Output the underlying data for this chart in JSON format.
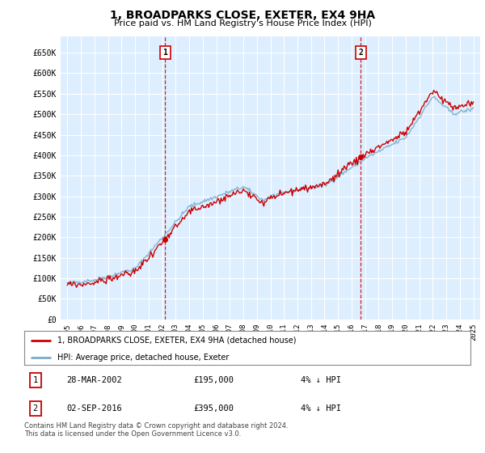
{
  "title": "1, BROADPARKS CLOSE, EXETER, EX4 9HA",
  "subtitle": "Price paid vs. HM Land Registry's House Price Index (HPI)",
  "ylabel_ticks": [
    "£0",
    "£50K",
    "£100K",
    "£150K",
    "£200K",
    "£250K",
    "£300K",
    "£350K",
    "£400K",
    "£450K",
    "£500K",
    "£550K",
    "£600K",
    "£650K"
  ],
  "ytick_values": [
    0,
    50000,
    100000,
    150000,
    200000,
    250000,
    300000,
    350000,
    400000,
    450000,
    500000,
    550000,
    600000,
    650000
  ],
  "x_start_year": 1995,
  "x_end_year": 2025,
  "sale1_year": 2002.23,
  "sale1_price": 195000,
  "sale2_year": 2016.67,
  "sale2_price": 395000,
  "legend_label_red": "1, BROADPARKS CLOSE, EXETER, EX4 9HA (detached house)",
  "legend_label_blue": "HPI: Average price, detached house, Exeter",
  "table_row1": [
    "1",
    "28-MAR-2002",
    "£195,000",
    "4% ↓ HPI"
  ],
  "table_row2": [
    "2",
    "02-SEP-2016",
    "£395,000",
    "4% ↓ HPI"
  ],
  "footer": "Contains HM Land Registry data © Crown copyright and database right 2024.\nThis data is licensed under the Open Government Licence v3.0.",
  "bg_color": "#ffffff",
  "plot_bg_color": "#ddeeff",
  "grid_color": "#ffffff",
  "red_color": "#cc0000",
  "blue_color": "#7aadcc"
}
